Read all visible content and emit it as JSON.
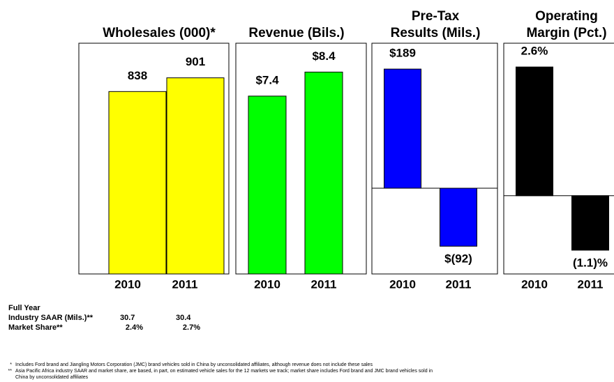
{
  "chart_data": [
    {
      "type": "bar",
      "title": [
        "Wholesales (000)*"
      ],
      "categories": [
        "2010",
        "2011"
      ],
      "values": [
        838,
        901
      ],
      "color": "#ffff00",
      "ylim": [
        0,
        1060
      ]
    },
    {
      "type": "bar",
      "title": [
        "Revenue (Bils.)"
      ],
      "categories": [
        "2010",
        "2011"
      ],
      "values": [
        7.4,
        8.4
      ],
      "value_labels": [
        "$7.4",
        "$8.4"
      ],
      "color": "#00ff00",
      "ylim": [
        0,
        9.6
      ]
    },
    {
      "type": "bar",
      "title": [
        "Pre-Tax",
        "Results (Mils.)"
      ],
      "categories": [
        "2010",
        "2011"
      ],
      "values": [
        189,
        -92
      ],
      "value_labels": [
        "$189",
        "$(92)"
      ],
      "color": "#0000ff",
      "ylim": [
        -136,
        230
      ]
    },
    {
      "type": "bar",
      "title": [
        "Operating",
        "Margin (Pct.)"
      ],
      "categories": [
        "2010",
        "2011"
      ],
      "values": [
        2.6,
        -1.1
      ],
      "value_labels": [
        "2.6%",
        "(1.1)%"
      ],
      "color": "#000000",
      "ylim": [
        -1.58,
        3.08
      ]
    }
  ],
  "table": {
    "title": "Full Year",
    "rows": [
      [
        "Industry SAAR (Mils.)**",
        "30.7",
        "30.4"
      ],
      [
        "Market Share**",
        "2.4%",
        "2.7%"
      ]
    ]
  },
  "footnotes": [
    {
      "mark": "*",
      "lines": [
        "Includes Ford brand and Jiangling Motors Corporation (JMC) brand vehicles sold in China by unconsolidated affiliates, although revenue does not include these sales"
      ]
    },
    {
      "mark": "**",
      "lines": [
        "Asia Pacific Africa industry SAAR and market share, are based, in part, on estimated vehicle sales for the 12 markets we track; market share includes Ford brand and JMC brand vehicles sold in",
        "China by unconsolidated affiliates"
      ]
    }
  ]
}
